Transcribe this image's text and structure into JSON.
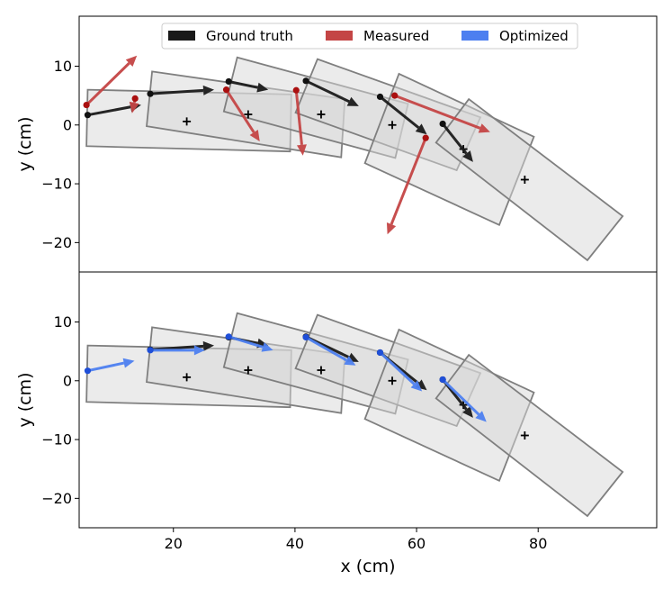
{
  "chart_data": {
    "type": "scatter",
    "x_label": "x (cm)",
    "y_label": "y (cm)",
    "xlim": [
      4.5,
      99.5
    ],
    "ylim": [
      -25,
      18.5
    ],
    "x_ticks": [
      20,
      40,
      60,
      80
    ],
    "x_tick_labels": [
      "20",
      "40",
      "60",
      "80"
    ],
    "y_ticks": [
      10,
      0,
      -10,
      -20
    ],
    "y_tick_labels": [
      "10",
      "0",
      "−10",
      "−20"
    ],
    "legend": {
      "placement": "top-center",
      "entries": [
        {
          "label": "Ground truth",
          "color": "#1a1a1a"
        },
        {
          "label": "Measured",
          "color": "#c44545"
        },
        {
          "label": "Optimized",
          "color": "#4d7ff0"
        }
      ]
    },
    "colors": {
      "ground_truth": "#1a1a1a",
      "measured": "#c44545",
      "measured_dot": "#aa0f0f",
      "optimized": "#4d7ff0",
      "optimized_dot": "#1f4fd8",
      "box_fill": "#d8d8d8",
      "box_edge": "#7f7f7f"
    },
    "boxes": [
      {
        "center": [
          22.2,
          0.6
        ],
        "corners": [
          [
            5.9,
            6.0
          ],
          [
            39.4,
            5.2
          ],
          [
            39.2,
            -4.5
          ],
          [
            5.7,
            -3.6
          ]
        ]
      },
      {
        "center": [
          32.3,
          1.8
        ],
        "corners": [
          [
            16.5,
            9.1
          ],
          [
            48.2,
            4.4
          ],
          [
            47.6,
            -5.5
          ],
          [
            15.6,
            -0.2
          ]
        ]
      },
      {
        "center": [
          44.3,
          1.8
        ],
        "corners": [
          [
            30.5,
            11.5
          ],
          [
            58.6,
            3.6
          ],
          [
            56.5,
            -5.6
          ],
          [
            28.3,
            2.3
          ]
        ]
      },
      {
        "center": [
          56.0,
          0.0
        ],
        "corners": [
          [
            43.7,
            11.2
          ],
          [
            70.5,
            1.3
          ],
          [
            66.6,
            -7.7
          ],
          [
            40.1,
            2.1
          ]
        ]
      },
      {
        "center": [
          67.7,
          -4.1
        ],
        "corners": [
          [
            57.1,
            8.7
          ],
          [
            79.3,
            -2.0
          ],
          [
            73.6,
            -17.0
          ],
          [
            51.5,
            -6.5
          ]
        ]
      },
      {
        "center": [
          77.8,
          -9.3
        ],
        "corners": [
          [
            68.6,
            4.4
          ],
          [
            93.9,
            -15.5
          ],
          [
            88.1,
            -23.0
          ],
          [
            63.2,
            -3.0
          ]
        ]
      }
    ],
    "panels": [
      {
        "name": "measured",
        "ground_truth_arrows": [
          {
            "start": [
              5.9,
              1.7
            ],
            "end": [
              14.7,
              3.4
            ]
          },
          {
            "start": [
              16.2,
              5.3
            ],
            "end": [
              26.7,
              6.0
            ]
          },
          {
            "start": [
              29.1,
              7.4
            ],
            "end": [
              35.6,
              6.0
            ]
          },
          {
            "start": [
              41.8,
              7.5
            ],
            "end": [
              50.5,
              3.2
            ]
          },
          {
            "start": [
              54.0,
              4.8
            ],
            "end": [
              61.7,
              -1.6
            ]
          },
          {
            "start": [
              64.3,
              0.2
            ],
            "end": [
              69.3,
              -6.3
            ]
          }
        ],
        "measured_arrows": [
          {
            "start": [
              5.7,
              3.4
            ],
            "end": [
              14.0,
              11.8
            ]
          },
          {
            "start": [
              13.7,
              4.5
            ],
            "end": [
              13.2,
              2.0
            ]
          },
          {
            "start": [
              28.7,
              6.0
            ],
            "end": [
              34.2,
              -2.8
            ]
          },
          {
            "start": [
              40.2,
              5.9
            ],
            "end": [
              41.3,
              -5.2
            ]
          },
          {
            "start": [
              56.4,
              5.0
            ],
            "end": [
              72.1,
              -1.2
            ]
          },
          {
            "start": [
              61.5,
              -2.2
            ],
            "end": [
              55.2,
              -18.6
            ]
          }
        ]
      },
      {
        "name": "optimized",
        "ground_truth_arrows": [
          {
            "start": [
              16.2,
              5.3
            ],
            "end": [
              26.7,
              6.0
            ]
          },
          {
            "start": [
              29.1,
              7.4
            ],
            "end": [
              35.6,
              6.0
            ]
          },
          {
            "start": [
              41.8,
              7.5
            ],
            "end": [
              50.5,
              3.2
            ]
          },
          {
            "start": [
              54.0,
              4.8
            ],
            "end": [
              61.7,
              -1.6
            ]
          },
          {
            "start": [
              64.3,
              0.2
            ],
            "end": [
              69.3,
              -6.3
            ]
          }
        ],
        "optimized_arrows": [
          {
            "start": [
              5.9,
              1.7
            ],
            "end": [
              13.6,
              3.4
            ]
          },
          {
            "start": [
              16.2,
              5.2
            ],
            "end": [
              25.2,
              5.2
            ]
          },
          {
            "start": [
              29.1,
              7.5
            ],
            "end": [
              36.4,
              5.2
            ]
          },
          {
            "start": [
              41.8,
              7.4
            ],
            "end": [
              50.0,
              2.6
            ]
          },
          {
            "start": [
              54.0,
              4.8
            ],
            "end": [
              60.9,
              -1.8
            ]
          },
          {
            "start": [
              64.3,
              0.2
            ],
            "end": [
              71.5,
              -7.0
            ]
          }
        ]
      }
    ]
  }
}
